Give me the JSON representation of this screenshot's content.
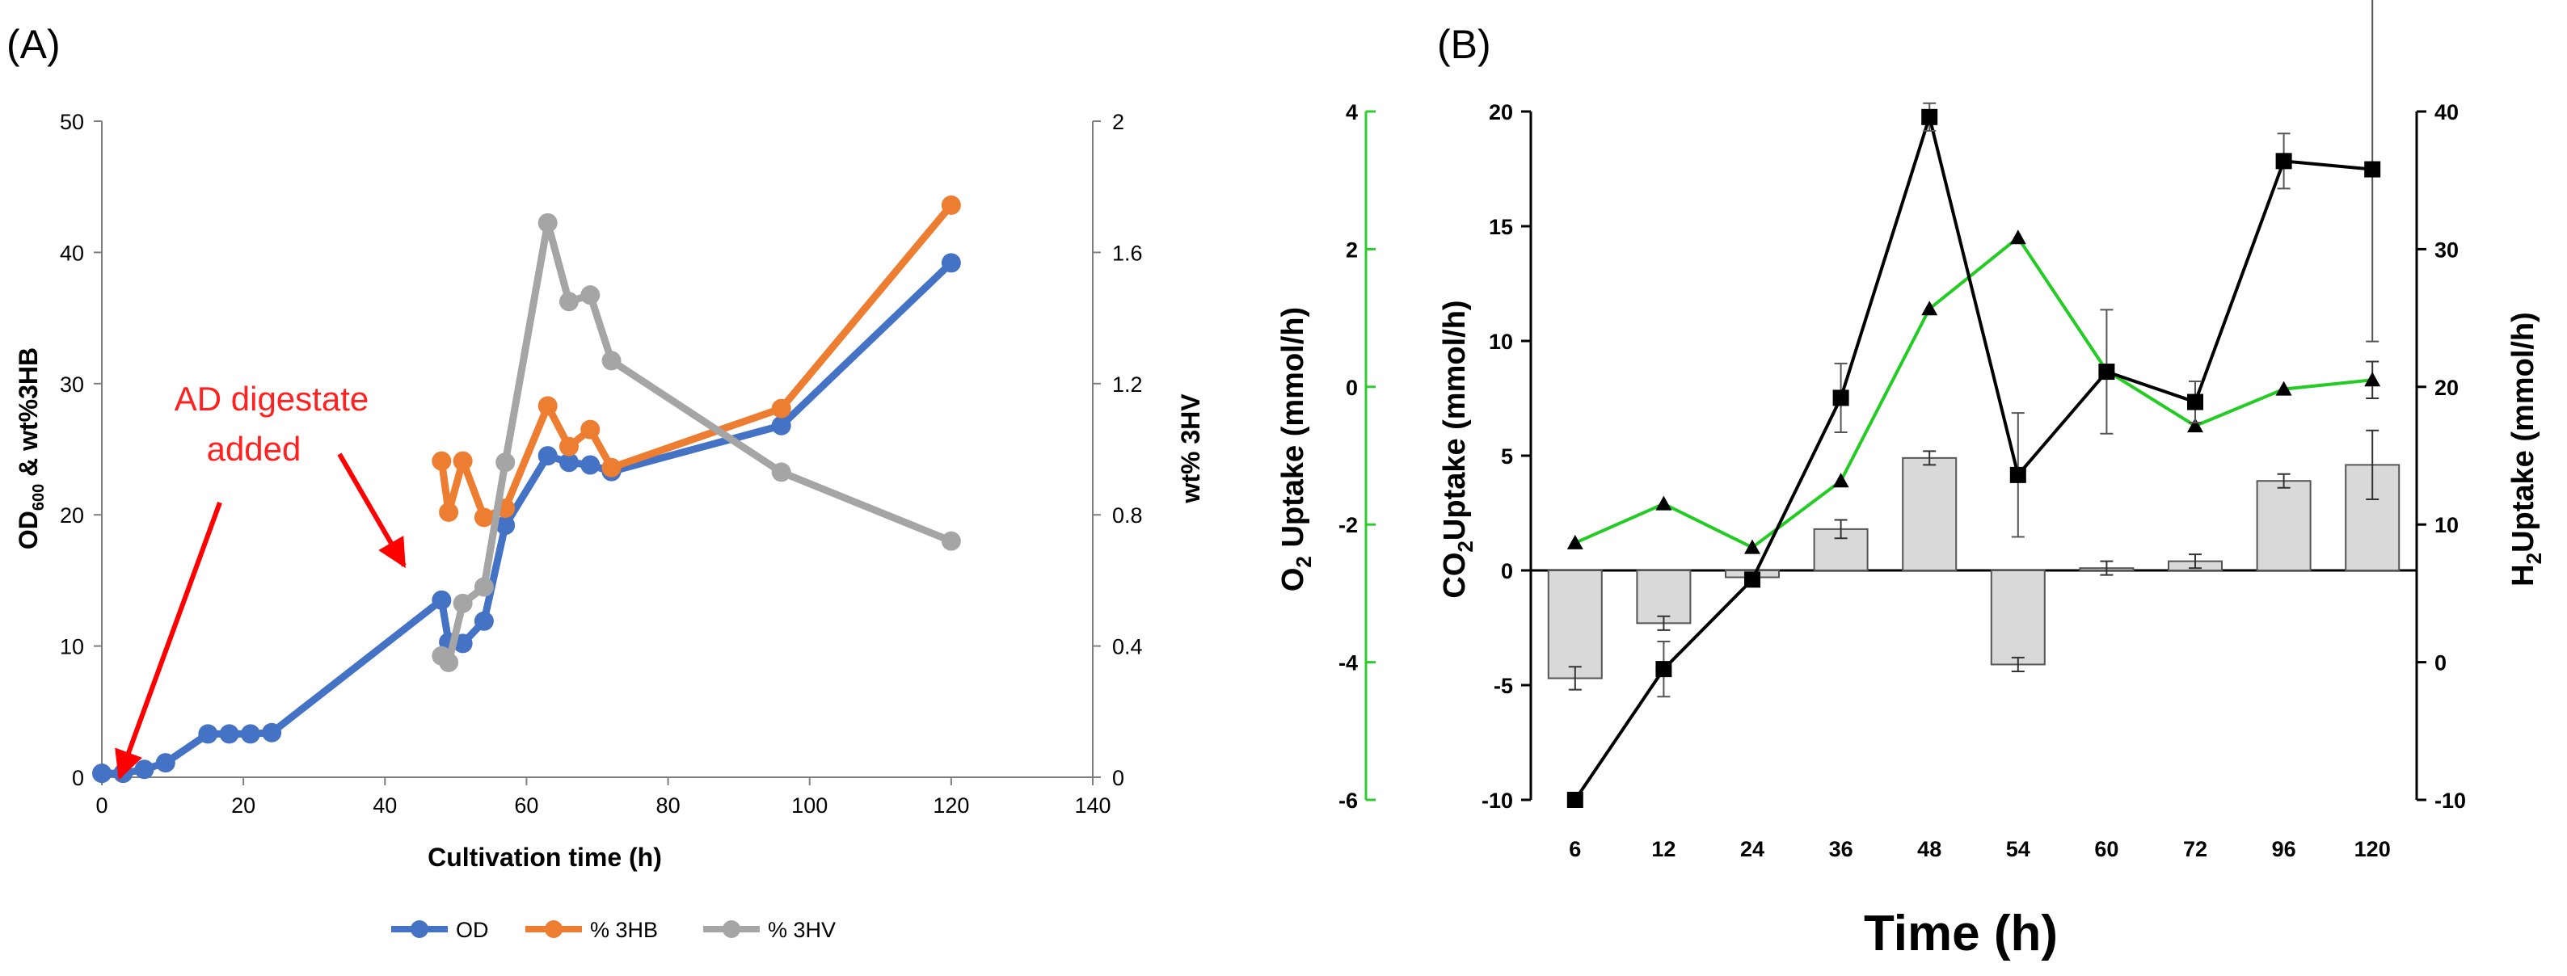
{
  "chart_data": [
    {
      "type": "line",
      "panel_label": "(A)",
      "xlabel": "Cultivation time (h)",
      "ylabel_left_parts": [
        "OD",
        "600",
        " & wt%3HB"
      ],
      "ylabel_right": "wt% 3HV",
      "xlim": [
        0,
        140
      ],
      "ylim_left": [
        0,
        50
      ],
      "ylim_right": [
        0,
        2
      ],
      "xticks": [
        "0",
        "20",
        "40",
        "60",
        "80",
        "100",
        "120",
        "140"
      ],
      "yticks_left": [
        "0",
        "10",
        "20",
        "30",
        "40",
        "50"
      ],
      "yticks_right": [
        "0",
        "0.4",
        "0.8",
        "1.2",
        "1.6",
        "2"
      ],
      "annotation": [
        "AD digestate",
        "added"
      ],
      "colors": {
        "OD": "#4472c4",
        "3HB": "#ed7d31",
        "3HV": "#a5a5a5",
        "arrow": "#ff0000"
      },
      "series": [
        {
          "name": "OD",
          "axis": "left",
          "x": [
            0,
            3,
            6,
            9,
            15,
            18,
            21,
            24,
            48,
            49,
            51,
            54,
            57,
            63,
            66,
            69,
            72,
            96,
            120
          ],
          "y": [
            0.3,
            0.3,
            0.6,
            1.1,
            3.3,
            3.3,
            3.3,
            3.4,
            13.5,
            10.3,
            10.2,
            11.9,
            19.2,
            24.5,
            24.0,
            23.8,
            23.3,
            26.8,
            39.2
          ]
        },
        {
          "name": "% 3HB",
          "axis": "left",
          "x": [
            48,
            49,
            51,
            54,
            57,
            63,
            66,
            69,
            72,
            96,
            120
          ],
          "y": [
            24.1,
            20.2,
            24.1,
            19.8,
            20.5,
            28.3,
            25.2,
            26.5,
            23.6,
            28.1,
            43.6
          ]
        },
        {
          "name": "% 3HV",
          "axis": "right",
          "x": [
            48,
            49,
            51,
            54,
            57,
            63,
            66,
            69,
            72,
            96,
            120
          ],
          "y": [
            0.37,
            0.35,
            0.53,
            0.58,
            0.96,
            1.69,
            1.45,
            1.47,
            1.27,
            0.93,
            0.72
          ]
        }
      ]
    },
    {
      "type": "bar+line",
      "panel_label": "(B)",
      "xlabel": "Time (h)",
      "ylabel_o2": [
        "O",
        "2",
        " Uptake (mmol/h)"
      ],
      "ylabel_co2": [
        "CO",
        "2",
        "Uptake (mmol/h)"
      ],
      "ylabel_h2": [
        "H",
        "2",
        "Uptake (mmol/h)"
      ],
      "categories": [
        "6",
        "12",
        "24",
        "36",
        "48",
        "54",
        "60",
        "72",
        "96",
        "120"
      ],
      "ylim_co2": [
        -10,
        20
      ],
      "ylim_o2": [
        -6,
        4
      ],
      "ylim_h2": [
        -10,
        40
      ],
      "yticks_co2": [
        "-10",
        "-5",
        "0",
        "5",
        "10",
        "15",
        "20"
      ],
      "yticks_o2": [
        "-6",
        "-4",
        "-2",
        "0",
        "2",
        "4"
      ],
      "yticks_h2": [
        "-10",
        "0",
        "10",
        "20",
        "30",
        "40"
      ],
      "colors": {
        "bar": "#d9d9d9",
        "o2_axis": "#2ecc2e",
        "green_line": "#22cc22",
        "black_line": "#000000"
      },
      "series": [
        {
          "name": "CO2 uptake",
          "kind": "bar",
          "axis": "co2",
          "values": [
            -4.7,
            -2.3,
            -0.3,
            1.8,
            4.9,
            -4.1,
            0.1,
            0.4,
            3.9,
            4.6
          ],
          "errors": [
            0.5,
            0.3,
            0.2,
            0.4,
            0.3,
            0.3,
            0.3,
            0.3,
            0.3,
            1.5
          ]
        },
        {
          "name": "O2 uptake",
          "kind": "line",
          "marker": "triangle",
          "axis": "co2",
          "values": [
            1.2,
            2.9,
            1.0,
            3.9,
            11.4,
            14.5,
            8.7,
            6.3,
            7.9,
            8.3
          ],
          "errors": [
            0,
            0,
            0,
            0,
            0,
            0,
            0,
            0,
            0,
            0.8
          ]
        },
        {
          "name": "H2 uptake",
          "kind": "line",
          "marker": "square",
          "axis": "h2",
          "values": [
            -10,
            -0.5,
            6.0,
            19.2,
            39.6,
            13.6,
            21.1,
            18.9,
            36.4,
            35.8
          ],
          "errors": [
            0,
            2.0,
            0,
            2.5,
            1.0,
            4.5,
            4.5,
            1.5,
            2.0,
            12.5
          ]
        }
      ]
    }
  ],
  "legend": [
    {
      "label": "OD",
      "color": "#4472c4"
    },
    {
      "label": "% 3HB",
      "color": "#ed7d31"
    },
    {
      "label": "% 3HV",
      "color": "#a5a5a5"
    }
  ]
}
